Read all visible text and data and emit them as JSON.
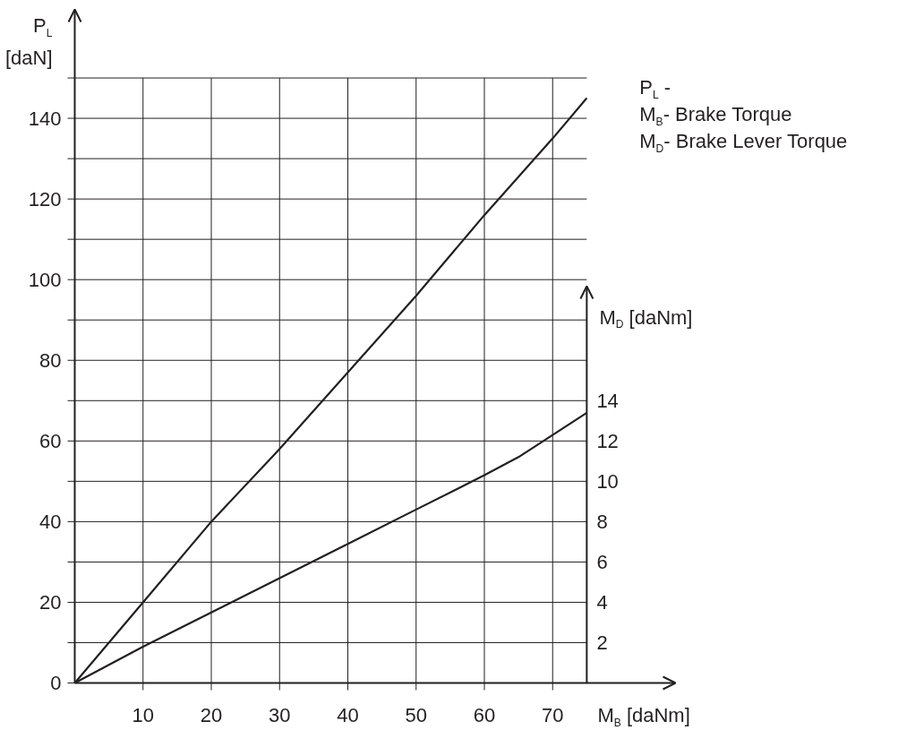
{
  "chart_data": {
    "type": "line",
    "xlabel": "M$_{B}$ [daNm]",
    "ylabel": "P$_{L}$ [daN]",
    "y2label": "M$_{D}$ [daNm]",
    "annotations": [
      "P$_{L}$ -",
      "M$_{B}$- Brake Torque",
      "M$_{D}$- Brake Lever Torque"
    ],
    "x": [
      0,
      10,
      20,
      30,
      40,
      50,
      60,
      70,
      75
    ],
    "series": [
      {
        "color": "#231f20",
        "values": [
          0,
          20,
          40,
          58,
          77,
          96,
          116,
          135,
          145
        ]
      },
      {
        "color": "#231f20",
        "axis": "y2",
        "x": [
          0,
          10,
          20,
          30,
          40,
          50,
          60,
          65,
          70,
          75
        ],
        "values": [
          0,
          1.8,
          3.5,
          5.2,
          6.9,
          8.6,
          10.3,
          11.2,
          12.3,
          13.4
        ]
      }
    ],
    "xlim": [
      0,
      88
    ],
    "xticks": [
      10,
      20,
      30,
      40,
      50,
      60,
      70
    ],
    "ylim": [
      0,
      167
    ],
    "yticks": [
      0,
      {
        "value": 10,
        "label": null
      },
      20,
      {
        "value": 30,
        "label": null
      },
      40,
      {
        "value": 50,
        "label": null
      },
      60,
      {
        "value": 70,
        "label": null
      },
      80,
      {
        "value": 90,
        "label": null
      },
      100,
      {
        "value": 110,
        "label": null
      },
      120,
      {
        "value": 130,
        "label": null
      },
      140,
      {
        "value": 150,
        "label": null
      }
    ],
    "y2lim": [
      0,
      33.4
    ],
    "y2ticks": [
      2,
      4,
      6,
      8,
      10,
      12,
      14
    ],
    "grid": true,
    "line_style": "solid"
  }
}
